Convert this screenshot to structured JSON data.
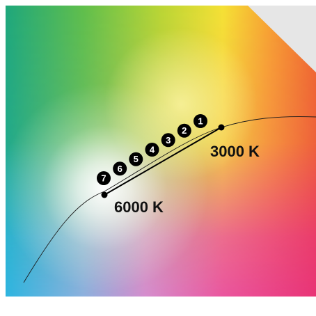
{
  "labels": {
    "warm": "3000 K",
    "cool": "6000 K"
  },
  "steps": [
    "1",
    "2",
    "3",
    "4",
    "5",
    "6",
    "7"
  ],
  "colors": {
    "curve": "#1a1a1a",
    "marker": "#000000",
    "step_circle": "#000000",
    "step_text": "#ffffff",
    "corner_fold": "#e6e6e6",
    "background": "#ffffff"
  }
}
